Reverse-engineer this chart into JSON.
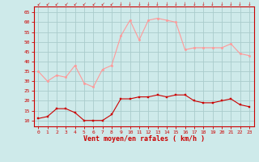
{
  "x": [
    0,
    1,
    2,
    3,
    4,
    5,
    6,
    7,
    8,
    9,
    10,
    11,
    12,
    13,
    14,
    15,
    16,
    17,
    18,
    19,
    20,
    21,
    22,
    23
  ],
  "wind_avg": [
    11,
    12,
    16,
    16,
    14,
    10,
    10,
    10,
    13,
    21,
    21,
    22,
    22,
    23,
    22,
    23,
    23,
    20,
    19,
    19,
    20,
    21,
    18,
    17
  ],
  "wind_gust": [
    35,
    30,
    33,
    32,
    38,
    29,
    27,
    36,
    38,
    53,
    61,
    51,
    61,
    62,
    61,
    60,
    46,
    47,
    47,
    47,
    47,
    49,
    44,
    43
  ],
  "xlabel": "Vent moyen/en rafales ( km/h )",
  "yticks": [
    10,
    15,
    20,
    25,
    30,
    35,
    40,
    45,
    50,
    55,
    60,
    65
  ],
  "xticks": [
    0,
    1,
    2,
    3,
    4,
    5,
    6,
    7,
    8,
    9,
    10,
    11,
    12,
    13,
    14,
    15,
    16,
    17,
    18,
    19,
    20,
    21,
    22,
    23
  ],
  "bg_color": "#ceeaea",
  "grid_color": "#aacccc",
  "avg_color": "#cc0000",
  "gust_color": "#ff9999",
  "axis_color": "#cc0000",
  "tick_label_color": "#cc0000",
  "xlabel_color": "#cc0000",
  "ymin": 7,
  "ymax": 68,
  "xmin": -0.5,
  "xmax": 23.5
}
